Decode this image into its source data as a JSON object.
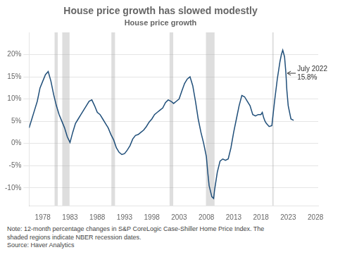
{
  "chart_data": {
    "type": "line",
    "title": "House price growth has slowed modestly",
    "subtitle": "House price growth",
    "color": "#1F4E79",
    "x": [
      1975.5,
      1976.0,
      1976.5,
      1977.0,
      1977.5,
      1978.0,
      1978.5,
      1979.0,
      1979.5,
      1980.0,
      1980.5,
      1981.0,
      1981.5,
      1982.0,
      1982.5,
      1983.0,
      1983.5,
      1984.0,
      1984.5,
      1985.0,
      1985.5,
      1986.0,
      1986.5,
      1987.0,
      1987.5,
      1988.0,
      1988.5,
      1989.0,
      1989.5,
      1990.0,
      1990.5,
      1991.0,
      1991.5,
      1992.0,
      1992.5,
      1993.0,
      1993.5,
      1994.0,
      1994.5,
      1995.0,
      1995.5,
      1996.0,
      1996.5,
      1997.0,
      1997.5,
      1998.0,
      1998.5,
      1999.0,
      1999.5,
      2000.0,
      2000.5,
      2001.0,
      2001.5,
      2002.0,
      2002.5,
      2003.0,
      2003.5,
      2004.0,
      2004.5,
      2005.0,
      2005.5,
      2006.0,
      2006.25,
      2006.5,
      2007.0,
      2007.5,
      2008.0,
      2008.25,
      2008.5,
      2009.0,
      2009.33,
      2009.5,
      2009.75,
      2010.0,
      2010.5,
      2011.0,
      2011.5,
      2012.0,
      2012.5,
      2013.0,
      2013.5,
      2014.0,
      2014.5,
      2015.0,
      2015.5,
      2016.0,
      2016.5,
      2017.0,
      2017.5,
      2018.0,
      2018.25,
      2018.5,
      2018.75,
      2019.0,
      2019.5,
      2020.0,
      2020.5,
      2021.0,
      2021.5,
      2021.75,
      2022.0,
      2022.33,
      2022.58,
      2022.75,
      2023.0,
      2023.5,
      2024.0
    ],
    "values": [
      3.5,
      5.5,
      7.5,
      9.5,
      12.5,
      14.0,
      15.5,
      16.2,
      14.0,
      11.0,
      8.5,
      6.5,
      5.0,
      3.5,
      1.5,
      0.2,
      2.5,
      4.5,
      5.5,
      6.5,
      7.5,
      8.5,
      9.5,
      9.8,
      8.5,
      7.0,
      6.5,
      5.5,
      4.5,
      3.5,
      2.0,
      0.8,
      -1.0,
      -2.0,
      -2.5,
      -2.3,
      -1.5,
      -0.5,
      1.0,
      1.8,
      2.0,
      2.5,
      3.0,
      3.8,
      4.8,
      5.5,
      6.5,
      7.0,
      7.5,
      8.0,
      9.2,
      9.8,
      9.5,
      9.0,
      9.5,
      10.0,
      11.8,
      13.5,
      14.5,
      15.0,
      13.0,
      9.5,
      7.5,
      5.5,
      2.5,
      0.0,
      -3.0,
      -6.5,
      -9.5,
      -12.0,
      -12.4,
      -10.5,
      -8.5,
      -6.5,
      -4.0,
      -3.5,
      -3.8,
      -3.5,
      -1.0,
      2.5,
      5.5,
      8.5,
      10.8,
      10.5,
      9.5,
      8.5,
      6.5,
      6.2,
      6.5,
      6.5,
      7.0,
      5.8,
      5.0,
      4.5,
      3.8,
      4.0,
      9.5,
      14.5,
      18.5,
      20.0,
      21.0,
      19.5,
      15.8,
      12.0,
      8.5,
      5.5,
      5.2
    ],
    "xlim": [
      1975.5,
      2028.5
    ],
    "ylim": [
      -14,
      25
    ],
    "xticks": [
      1978,
      1983,
      1988,
      1993,
      1998,
      2003,
      2008,
      2013,
      2018,
      2023,
      2028
    ],
    "yticks": [
      {
        "value": -10,
        "label": "-10%"
      },
      {
        "value": -5,
        "label": "-5%"
      },
      {
        "value": 0,
        "label": "0%"
      },
      {
        "value": 5,
        "label": "5%"
      },
      {
        "value": 10,
        "label": "10%"
      },
      {
        "value": 15,
        "label": "15%"
      },
      {
        "value": 20,
        "label": "20%"
      }
    ],
    "grid": "y",
    "recessions": [
      [
        1980.17,
        1980.75
      ],
      [
        1981.58,
        1982.92
      ],
      [
        1990.58,
        1991.25
      ],
      [
        2001.25,
        2001.92
      ],
      [
        2007.92,
        2009.5
      ],
      [
        2020.08,
        2020.33
      ]
    ],
    "annotations": [
      {
        "x": 2022.58,
        "y": 15.8,
        "text": "July 2022\n15.8%"
      }
    ],
    "note": "Note: 12-month percentage changes in S&P CoreLogic Case-Shiller Home Price Index. The\nshaded regions indicate NBER recession dates.\nSource: Haver Analytics"
  }
}
